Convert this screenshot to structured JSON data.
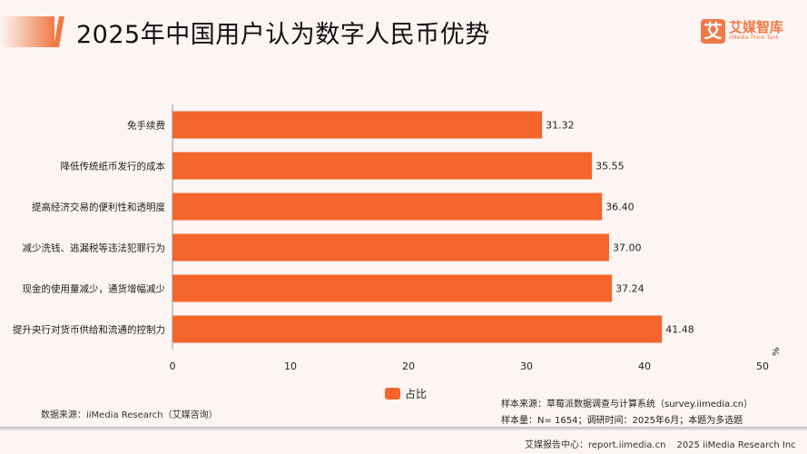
{
  "header": {
    "title": "2025年中国用户认为数字人民币优势",
    "logo_text": "艾媒智库",
    "logo_sub": "iiMedia Think Tank",
    "logo_mark": "艾"
  },
  "chart_data": {
    "type": "bar",
    "orientation": "horizontal",
    "categories": [
      "免手续费",
      "降低传统纸币发行的成本",
      "提高经济交易的便利性和透明度",
      "减少洗钱、逃漏税等违法犯罪行为",
      "现金的使用量减少，通货增幅减少",
      "提升央行对货币供给和流通的控制力"
    ],
    "series": [
      {
        "name": "占比",
        "values": [
          31.32,
          35.55,
          36.4,
          37.0,
          37.24,
          41.48
        ]
      }
    ],
    "value_labels": [
      "31.32",
      "35.55",
      "36.40",
      "37.00",
      "37.24",
      "41.48"
    ],
    "xlim": [
      0,
      50
    ],
    "xticks": [
      "0",
      "10",
      "20",
      "30",
      "40",
      "50"
    ],
    "unit": "%",
    "color": "#f4652b",
    "grid": false,
    "legend": "bottom-center"
  },
  "footer": {
    "source": "数据来源：iiMedia Research（艾媒咨询）",
    "sample_source": "样本来源：草莓派数据调查与计算系统（survey.iimedia.cn）",
    "sample_size": "样本量：N= 1654；调研时间：2025年6月；本题为多选题",
    "report_center": "艾媒报告中心：report.iimedia.cn",
    "copyright": "2025 iiMedia Research Inc"
  }
}
